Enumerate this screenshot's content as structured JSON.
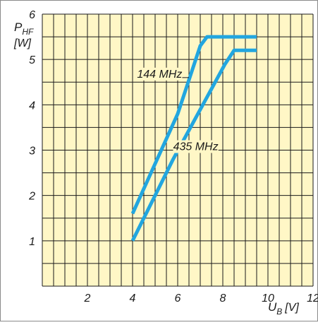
{
  "colors": {
    "background": "#fff7c6",
    "grid": "#1a1a1a",
    "series": "#22a6df",
    "border": "#8a8a8a"
  },
  "chart_data": {
    "type": "line",
    "ylabel_main": "P",
    "ylabel_sub": "HF",
    "ylabel_unit": "[W]",
    "xlabel_main": "U",
    "xlabel_sub": "B",
    "xlabel_unit": "[V]",
    "xlim": [
      0,
      12
    ],
    "ylim": [
      0,
      6
    ],
    "x_ticks": [
      "2",
      "4",
      "6",
      "8",
      "10",
      "12"
    ],
    "y_ticks": [
      "1",
      "2",
      "3",
      "4",
      "5",
      "6"
    ],
    "grid": "on, 0.5 V by 0.5 W",
    "series": [
      {
        "name": "144 MHz",
        "points": [
          [
            4.0,
            1.6
          ],
          [
            6.0,
            3.8
          ],
          [
            7.0,
            5.3
          ],
          [
            7.3,
            5.5
          ],
          [
            9.5,
            5.5
          ]
        ]
      },
      {
        "name": "435 MHz",
        "points": [
          [
            4.0,
            1.0
          ],
          [
            5.8,
            2.8
          ],
          [
            8.1,
            4.9
          ],
          [
            8.5,
            5.2
          ],
          [
            9.5,
            5.2
          ]
        ]
      }
    ]
  }
}
